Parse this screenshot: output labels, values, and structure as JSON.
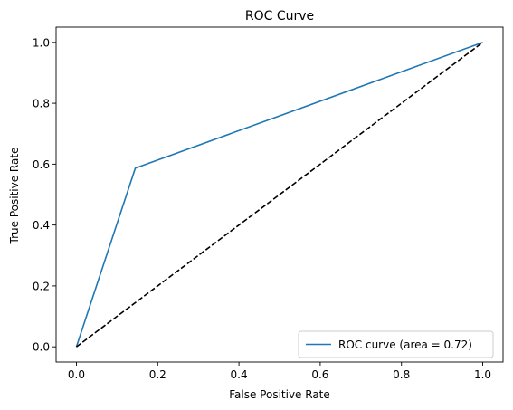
{
  "chart_data": {
    "type": "line",
    "title": "ROC Curve",
    "xlabel": "False Positive Rate",
    "ylabel": "True Positive Rate",
    "xlim": [
      -0.05,
      1.05
    ],
    "ylim": [
      -0.05,
      1.05
    ],
    "xticks": [
      0.0,
      0.2,
      0.4,
      0.6,
      0.8,
      1.0
    ],
    "yticks": [
      0.0,
      0.2,
      0.4,
      0.6,
      0.8,
      1.0
    ],
    "xtick_labels": [
      "0.0",
      "0.2",
      "0.4",
      "0.6",
      "0.8",
      "1.0"
    ],
    "ytick_labels": [
      "0.0",
      "0.2",
      "0.4",
      "0.6",
      "0.8",
      "1.0"
    ],
    "grid": false,
    "legend_position": "lower-right",
    "series": [
      {
        "name": "ROC curve (area = 0.72)",
        "color": "#1f77b4",
        "style": "solid",
        "x": [
          0.0,
          0.145,
          1.0
        ],
        "y": [
          0.0,
          0.587,
          1.0
        ]
      },
      {
        "color": "#000000",
        "style": "dashed",
        "x": [
          0.0,
          1.0
        ],
        "y": [
          0.0,
          1.0
        ]
      }
    ]
  }
}
